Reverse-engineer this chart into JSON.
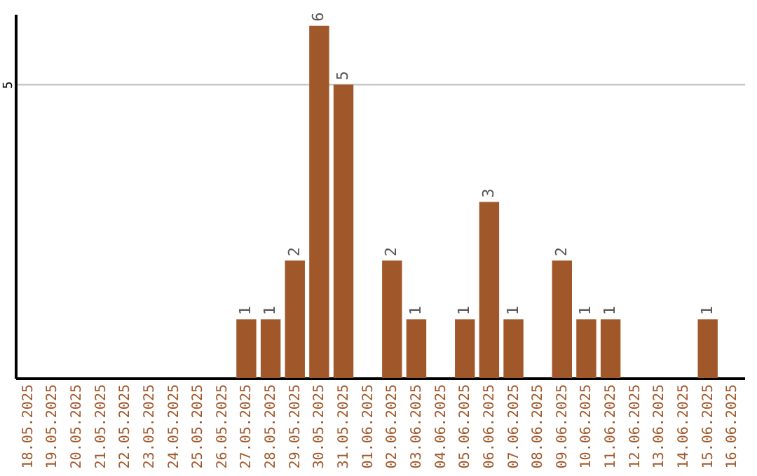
{
  "chart_data": {
    "type": "bar",
    "categories": [
      "18.05.2025",
      "19.05.2025",
      "20.05.2025",
      "21.05.2025",
      "22.05.2025",
      "23.05.2025",
      "24.05.2025",
      "25.05.2025",
      "26.05.2025",
      "27.05.2025",
      "28.05.2025",
      "29.05.2025",
      "30.05.2025",
      "31.05.2025",
      "01.06.2025",
      "02.06.2025",
      "03.06.2025",
      "04.06.2025",
      "05.06.2025",
      "06.06.2025",
      "07.06.2025",
      "08.06.2025",
      "09.06.2025",
      "10.06.2025",
      "11.06.2025",
      "12.06.2025",
      "13.06.2025",
      "14.06.2025",
      "15.06.2025",
      "16.06.2025"
    ],
    "values": [
      0,
      0,
      0,
      0,
      0,
      0,
      0,
      0,
      0,
      1,
      1,
      2,
      6,
      5,
      0,
      2,
      1,
      0,
      1,
      3,
      1,
      0,
      2,
      1,
      1,
      0,
      0,
      0,
      1,
      0
    ],
    "value_labels": [
      null,
      null,
      null,
      null,
      null,
      null,
      null,
      null,
      null,
      "1",
      "1",
      "2",
      "6",
      "5",
      null,
      "2",
      "1",
      null,
      "1",
      "3",
      "1",
      null,
      "2",
      "1",
      "1",
      null,
      null,
      null,
      "1",
      null
    ],
    "color": "#a0572a",
    "ylim": [
      0,
      6.2
    ],
    "yticks": [
      5
    ],
    "grid": "y"
  }
}
